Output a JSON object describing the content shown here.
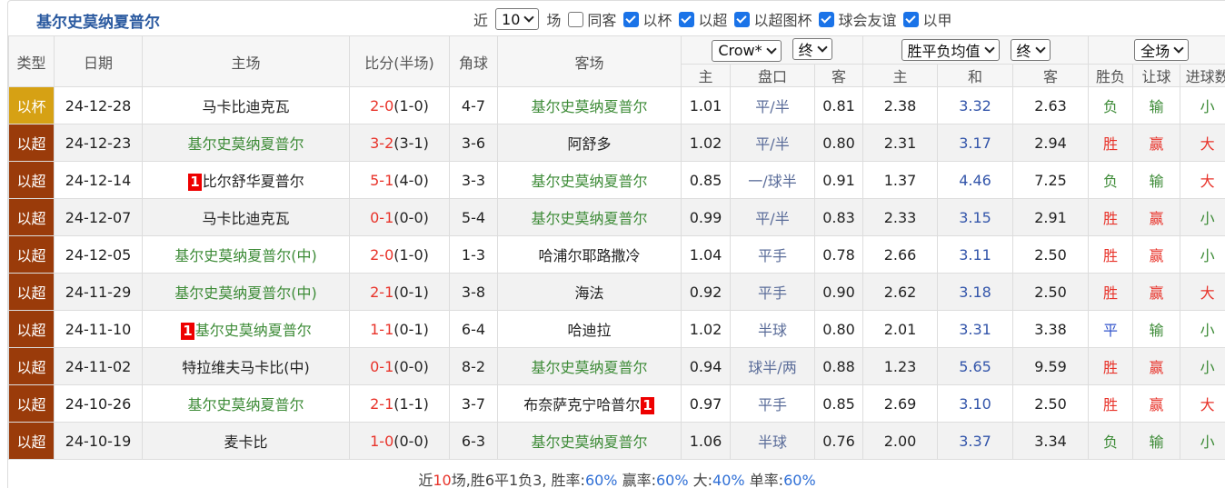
{
  "title": "基尔史莫纳夏普尔",
  "filter": {
    "prefix": "近",
    "count": "10",
    "suffix": "场",
    "options": [
      {
        "label": "同客",
        "checked": false
      },
      {
        "label": "以杯",
        "checked": true
      },
      {
        "label": "以超",
        "checked": true
      },
      {
        "label": "以超图杯",
        "checked": true
      },
      {
        "label": "球会友谊",
        "checked": true
      },
      {
        "label": "以甲",
        "checked": true
      }
    ]
  },
  "type_colors": {
    "以杯": "#d6a114",
    "以超": "#9a3b0a"
  },
  "result_colors": {
    "胜": "#e8332a",
    "赢": "#e8332a",
    "大": "#e8332a",
    "负": "#3d8b37",
    "输": "#3d8b37",
    "小": "#3d8b37",
    "平": "#3355cc"
  },
  "table": {
    "headers": [
      "类型",
      "日期",
      "主场",
      "比分(半场)",
      "角球",
      "客场"
    ],
    "handicap": {
      "company": "Crow*",
      "stage": "终",
      "columns": [
        "主",
        "盘口",
        "客"
      ]
    },
    "odds": {
      "company": "胜平负均值",
      "stage": "终",
      "columns": [
        "主",
        "和",
        "客"
      ]
    },
    "result": {
      "scope": "全场",
      "columns": [
        "胜负",
        "让球",
        "进球数"
      ]
    },
    "rows": [
      {
        "type": "以杯",
        "date": "24-12-28",
        "home": "马卡比迪克瓦",
        "score": "2-0",
        "half": "(1-0)",
        "corners": "4-7",
        "away": "基尔史莫纳夏普尔",
        "h_home": "1.01",
        "line": "平/半",
        "h_away": "0.81",
        "o_home": "2.38",
        "o_draw": "3.32",
        "o_away": "2.63",
        "wl": "负",
        "hc": "输",
        "ou": "小"
      },
      {
        "type": "以超",
        "date": "24-12-23",
        "home": "基尔史莫纳夏普尔",
        "score": "3-2",
        "half": "(3-1)",
        "corners": "3-6",
        "away": "阿舒多",
        "h_home": "1.02",
        "line": "平/半",
        "h_away": "0.80",
        "o_home": "2.31",
        "o_draw": "3.17",
        "o_away": "2.94",
        "wl": "胜",
        "hc": "赢",
        "ou": "大"
      },
      {
        "type": "以超",
        "date": "24-12-14",
        "home_card": "1",
        "home": "比尔舒华夏普尔",
        "score": "5-1",
        "half": "(4-0)",
        "corners": "3-3",
        "away": "基尔史莫纳夏普尔",
        "h_home": "0.85",
        "line": "一/球半",
        "h_away": "0.91",
        "o_home": "1.37",
        "o_draw": "4.46",
        "o_away": "7.25",
        "wl": "负",
        "hc": "输",
        "ou": "大"
      },
      {
        "type": "以超",
        "date": "24-12-07",
        "home": "马卡比迪克瓦",
        "score": "0-1",
        "half": "(0-0)",
        "corners": "5-4",
        "away": "基尔史莫纳夏普尔",
        "h_home": "0.99",
        "line": "平/半",
        "h_away": "0.83",
        "o_home": "2.33",
        "o_draw": "3.15",
        "o_away": "2.91",
        "wl": "胜",
        "hc": "赢",
        "ou": "小"
      },
      {
        "type": "以超",
        "date": "24-12-05",
        "home": "基尔史莫纳夏普尔(中)",
        "score": "2-0",
        "half": "(1-0)",
        "corners": "1-3",
        "away": "哈浦尔耶路撒冷",
        "h_home": "1.04",
        "line": "平手",
        "h_away": "0.78",
        "o_home": "2.66",
        "o_draw": "3.11",
        "o_away": "2.50",
        "wl": "胜",
        "hc": "赢",
        "ou": "小"
      },
      {
        "type": "以超",
        "date": "24-11-29",
        "home": "基尔史莫纳夏普尔(中)",
        "score": "2-1",
        "half": "(0-1)",
        "corners": "3-8",
        "away": "海法",
        "h_home": "0.92",
        "line": "平手",
        "h_away": "0.90",
        "o_home": "2.62",
        "o_draw": "3.18",
        "o_away": "2.50",
        "wl": "胜",
        "hc": "赢",
        "ou": "大"
      },
      {
        "type": "以超",
        "date": "24-11-10",
        "home_card": "1",
        "home": "基尔史莫纳夏普尔",
        "score": "1-1",
        "half": "(0-1)",
        "corners": "6-4",
        "away": "哈迪拉",
        "h_home": "1.02",
        "line": "半球",
        "h_away": "0.80",
        "o_home": "2.01",
        "o_draw": "3.31",
        "o_away": "3.38",
        "wl": "平",
        "hc": "输",
        "ou": "小"
      },
      {
        "type": "以超",
        "date": "24-11-02",
        "home": "特拉维夫马卡比(中)",
        "score": "0-1",
        "half": "(0-0)",
        "corners": "8-2",
        "away": "基尔史莫纳夏普尔",
        "h_home": "0.94",
        "line": "球半/两",
        "h_away": "0.88",
        "o_home": "1.23",
        "o_draw": "5.65",
        "o_away": "9.59",
        "wl": "胜",
        "hc": "赢",
        "ou": "小"
      },
      {
        "type": "以超",
        "date": "24-10-26",
        "home": "基尔史莫纳夏普尔",
        "score": "2-1",
        "half": "(1-1)",
        "corners": "3-7",
        "away": "布奈萨克宁哈普尔",
        "away_card": "1",
        "h_home": "0.97",
        "line": "平手",
        "h_away": "0.85",
        "o_home": "2.69",
        "o_draw": "3.10",
        "o_away": "2.50",
        "wl": "胜",
        "hc": "赢",
        "ou": "大"
      },
      {
        "type": "以超",
        "date": "24-10-19",
        "home": "麦卡比",
        "score": "1-0",
        "half": "(0-0)",
        "corners": "6-3",
        "away": "基尔史莫纳夏普尔",
        "h_home": "1.06",
        "line": "半球",
        "h_away": "0.76",
        "o_home": "2.00",
        "o_draw": "3.37",
        "o_away": "3.34",
        "wl": "负",
        "hc": "输",
        "ou": "小"
      }
    ]
  },
  "footer": [
    {
      "text": "近"
    },
    {
      "text": "10",
      "hl": "#e8332a"
    },
    {
      "text": "场,胜6平1负3, 胜率:"
    },
    {
      "text": "60%",
      "hl": "#2f6fd6"
    },
    {
      "text": " 赢率:"
    },
    {
      "text": "60%",
      "hl": "#2f6fd6"
    },
    {
      "text": " 大:"
    },
    {
      "text": "40%",
      "hl": "#2f6fd6"
    },
    {
      "text": " 单率:"
    },
    {
      "text": "60%",
      "hl": "#2f6fd6"
    }
  ]
}
